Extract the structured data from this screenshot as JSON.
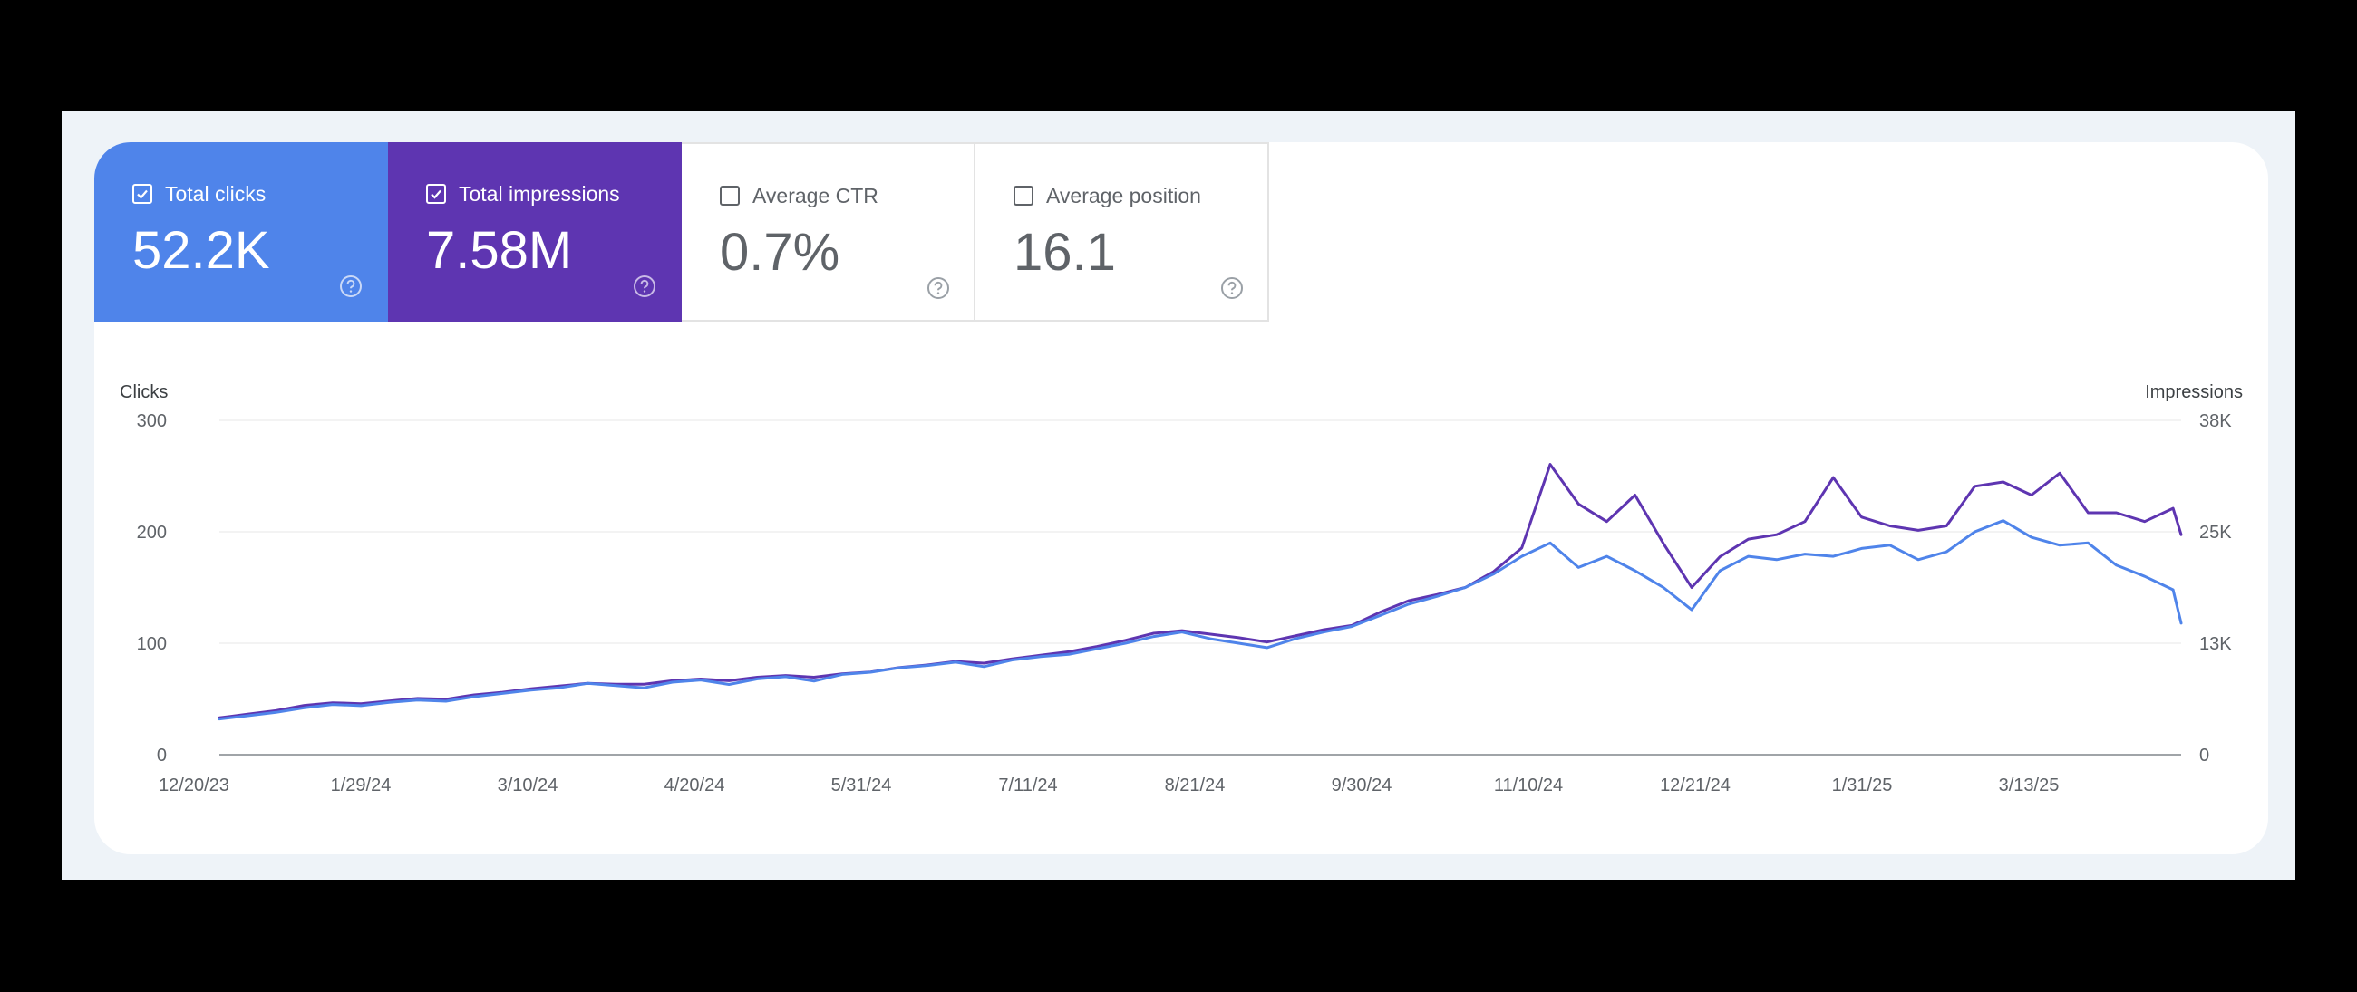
{
  "metrics": [
    {
      "label": "Total clicks",
      "value": "52.2K",
      "checked": true,
      "color": "#4f84ea"
    },
    {
      "label": "Total impressions",
      "value": "7.58M",
      "checked": true,
      "color": "#5e35b1"
    },
    {
      "label": "Average CTR",
      "value": "0.7%",
      "checked": false,
      "color": "#ffffff"
    },
    {
      "label": "Average position",
      "value": "16.1",
      "checked": false,
      "color": "#ffffff"
    }
  ],
  "chart_data": {
    "type": "line",
    "xlabel": "",
    "ylabel": "Clicks",
    "y2label": "Impressions",
    "ylim": [
      0,
      300
    ],
    "y2lim": [
      0,
      38000
    ],
    "yticks": [
      "0",
      "100",
      "200",
      "300"
    ],
    "y2ticks": [
      "0",
      "13K",
      "25K",
      "38K"
    ],
    "x_tick_labels": [
      "12/20/23",
      "1/29/24",
      "3/10/24",
      "4/20/24",
      "5/31/24",
      "7/11/24",
      "8/21/24",
      "9/30/24",
      "11/10/24",
      "12/21/24",
      "1/31/25",
      "3/13/25"
    ],
    "x_start": "2023-12-20",
    "x_end": "2025-04-18",
    "grid": true,
    "series": [
      {
        "name": "Total clicks",
        "axis": "left",
        "color": "#4f84ea",
        "points": [
          [
            "2023-12-20",
            32
          ],
          [
            "2023-12-27",
            35
          ],
          [
            "2024-01-03",
            38
          ],
          [
            "2024-01-10",
            42
          ],
          [
            "2024-01-17",
            45
          ],
          [
            "2024-01-24",
            44
          ],
          [
            "2024-01-31",
            47
          ],
          [
            "2024-02-07",
            49
          ],
          [
            "2024-02-14",
            48
          ],
          [
            "2024-02-21",
            52
          ],
          [
            "2024-02-28",
            55
          ],
          [
            "2024-03-06",
            58
          ],
          [
            "2024-03-13",
            60
          ],
          [
            "2024-03-20",
            64
          ],
          [
            "2024-03-27",
            62
          ],
          [
            "2024-04-03",
            60
          ],
          [
            "2024-04-10",
            65
          ],
          [
            "2024-04-17",
            67
          ],
          [
            "2024-04-24",
            63
          ],
          [
            "2024-05-01",
            68
          ],
          [
            "2024-05-08",
            70
          ],
          [
            "2024-05-15",
            66
          ],
          [
            "2024-05-22",
            72
          ],
          [
            "2024-05-29",
            74
          ],
          [
            "2024-06-05",
            78
          ],
          [
            "2024-06-12",
            80
          ],
          [
            "2024-06-19",
            83
          ],
          [
            "2024-06-26",
            79
          ],
          [
            "2024-07-03",
            85
          ],
          [
            "2024-07-10",
            88
          ],
          [
            "2024-07-17",
            90
          ],
          [
            "2024-07-24",
            95
          ],
          [
            "2024-07-31",
            100
          ],
          [
            "2024-08-07",
            106
          ],
          [
            "2024-08-14",
            110
          ],
          [
            "2024-08-21",
            104
          ],
          [
            "2024-08-28",
            100
          ],
          [
            "2024-09-04",
            96
          ],
          [
            "2024-09-11",
            104
          ],
          [
            "2024-09-18",
            110
          ],
          [
            "2024-09-25",
            115
          ],
          [
            "2024-10-02",
            125
          ],
          [
            "2024-10-09",
            135
          ],
          [
            "2024-10-16",
            142
          ],
          [
            "2024-10-23",
            150
          ],
          [
            "2024-10-30",
            162
          ],
          [
            "2024-11-06",
            178
          ],
          [
            "2024-11-13",
            190
          ],
          [
            "2024-11-20",
            168
          ],
          [
            "2024-11-27",
            178
          ],
          [
            "2024-12-04",
            165
          ],
          [
            "2024-12-11",
            150
          ],
          [
            "2024-12-18",
            130
          ],
          [
            "2024-12-25",
            165
          ],
          [
            "2025-01-01",
            178
          ],
          [
            "2025-01-08",
            175
          ],
          [
            "2025-01-15",
            180
          ],
          [
            "2025-01-22",
            178
          ],
          [
            "2025-01-29",
            185
          ],
          [
            "2025-02-05",
            188
          ],
          [
            "2025-02-12",
            175
          ],
          [
            "2025-02-19",
            182
          ],
          [
            "2025-02-26",
            200
          ],
          [
            "2025-03-05",
            210
          ],
          [
            "2025-03-12",
            195
          ],
          [
            "2025-03-19",
            188
          ],
          [
            "2025-03-26",
            190
          ],
          [
            "2025-04-02",
            170
          ],
          [
            "2025-04-09",
            160
          ],
          [
            "2025-04-16",
            148
          ],
          [
            "2025-04-18",
            118
          ]
        ]
      },
      {
        "name": "Total impressions",
        "axis": "right",
        "color": "#5e35b1",
        "points": [
          [
            "2023-12-20",
            4200
          ],
          [
            "2023-12-27",
            4600
          ],
          [
            "2024-01-03",
            5000
          ],
          [
            "2024-01-10",
            5600
          ],
          [
            "2024-01-17",
            5900
          ],
          [
            "2024-01-24",
            5800
          ],
          [
            "2024-01-31",
            6100
          ],
          [
            "2024-02-07",
            6400
          ],
          [
            "2024-02-14",
            6300
          ],
          [
            "2024-02-21",
            6800
          ],
          [
            "2024-02-28",
            7100
          ],
          [
            "2024-03-06",
            7500
          ],
          [
            "2024-03-13",
            7800
          ],
          [
            "2024-03-20",
            8100
          ],
          [
            "2024-03-27",
            8000
          ],
          [
            "2024-04-03",
            8000
          ],
          [
            "2024-04-10",
            8400
          ],
          [
            "2024-04-17",
            8600
          ],
          [
            "2024-04-24",
            8400
          ],
          [
            "2024-05-01",
            8800
          ],
          [
            "2024-05-08",
            9000
          ],
          [
            "2024-05-15",
            8800
          ],
          [
            "2024-05-22",
            9200
          ],
          [
            "2024-05-29",
            9400
          ],
          [
            "2024-06-05",
            9900
          ],
          [
            "2024-06-12",
            10200
          ],
          [
            "2024-06-19",
            10600
          ],
          [
            "2024-06-26",
            10400
          ],
          [
            "2024-07-03",
            10900
          ],
          [
            "2024-07-10",
            11300
          ],
          [
            "2024-07-17",
            11700
          ],
          [
            "2024-07-24",
            12300
          ],
          [
            "2024-07-31",
            13000
          ],
          [
            "2024-08-07",
            13800
          ],
          [
            "2024-08-14",
            14100
          ],
          [
            "2024-08-21",
            13700
          ],
          [
            "2024-08-28",
            13300
          ],
          [
            "2024-09-04",
            12800
          ],
          [
            "2024-09-11",
            13500
          ],
          [
            "2024-09-18",
            14200
          ],
          [
            "2024-09-25",
            14700
          ],
          [
            "2024-10-02",
            16200
          ],
          [
            "2024-10-09",
            17500
          ],
          [
            "2024-10-16",
            18200
          ],
          [
            "2024-10-23",
            19000
          ],
          [
            "2024-10-30",
            20800
          ],
          [
            "2024-11-06",
            23500
          ],
          [
            "2024-11-13",
            33000
          ],
          [
            "2024-11-20",
            28500
          ],
          [
            "2024-11-27",
            26500
          ],
          [
            "2024-12-04",
            29500
          ],
          [
            "2024-12-11",
            24000
          ],
          [
            "2024-12-18",
            19000
          ],
          [
            "2024-12-25",
            22500
          ],
          [
            "2025-01-01",
            24500
          ],
          [
            "2025-01-08",
            25000
          ],
          [
            "2025-01-15",
            26500
          ],
          [
            "2025-01-22",
            31500
          ],
          [
            "2025-01-29",
            27000
          ],
          [
            "2025-02-05",
            26000
          ],
          [
            "2025-02-12",
            25500
          ],
          [
            "2025-02-19",
            26000
          ],
          [
            "2025-02-26",
            30500
          ],
          [
            "2025-03-05",
            31000
          ],
          [
            "2025-03-12",
            29500
          ],
          [
            "2025-03-19",
            32000
          ],
          [
            "2025-03-26",
            27500
          ],
          [
            "2025-04-02",
            27500
          ],
          [
            "2025-04-09",
            26500
          ],
          [
            "2025-04-16",
            28000
          ],
          [
            "2025-04-18",
            25000
          ]
        ]
      }
    ]
  }
}
